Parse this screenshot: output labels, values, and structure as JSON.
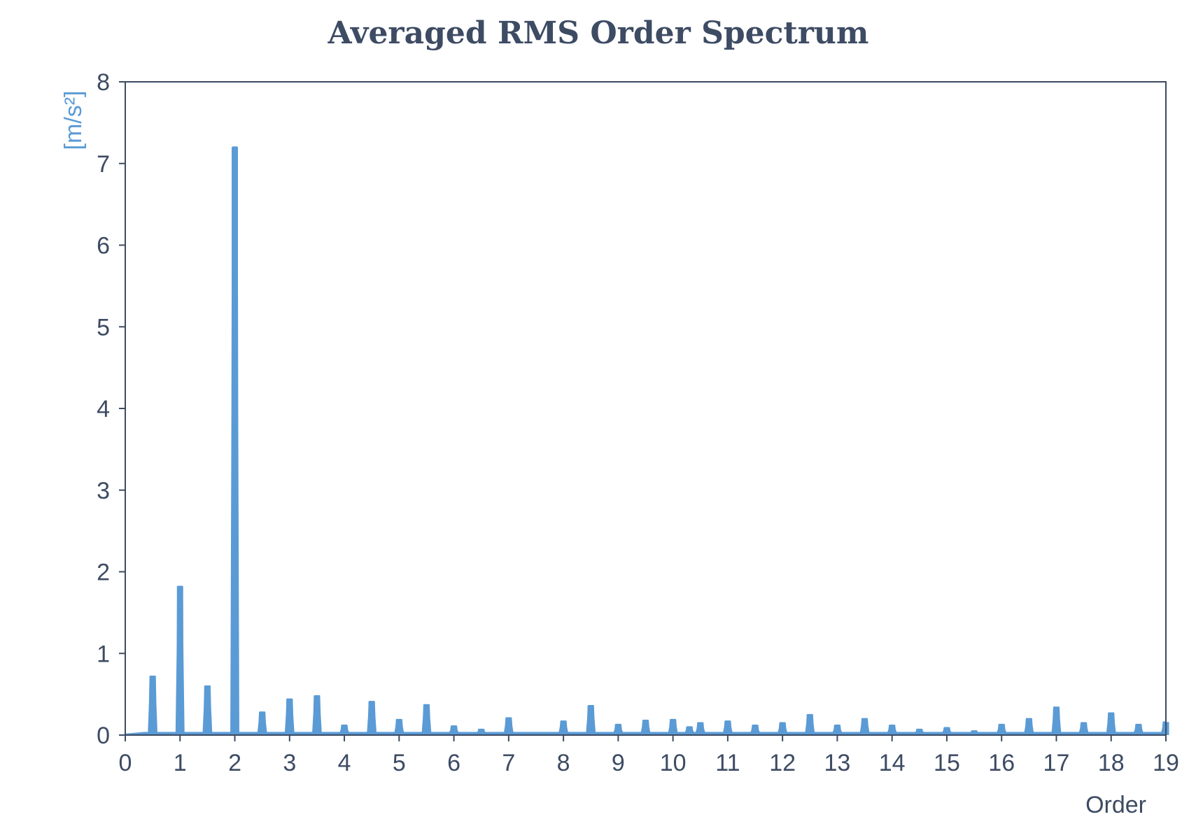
{
  "chart_data": {
    "type": "line",
    "title": "Averaged RMS Order Spectrum",
    "xlabel": "Order",
    "ylabel": "[m/s²]",
    "xlim": [
      0,
      19
    ],
    "ylim": [
      0,
      8
    ],
    "x_ticks": [
      0,
      1,
      2,
      3,
      4,
      5,
      6,
      7,
      8,
      9,
      10,
      11,
      12,
      13,
      14,
      15,
      16,
      17,
      18,
      19
    ],
    "y_ticks": [
      0,
      1,
      2,
      3,
      4,
      5,
      6,
      7,
      8
    ],
    "grid": false,
    "legend": "none",
    "peaks": [
      {
        "x": 0.5,
        "y": 0.72
      },
      {
        "x": 1.0,
        "y": 1.82
      },
      {
        "x": 1.5,
        "y": 0.6
      },
      {
        "x": 2.0,
        "y": 7.2
      },
      {
        "x": 2.5,
        "y": 0.28
      },
      {
        "x": 3.0,
        "y": 0.44
      },
      {
        "x": 3.5,
        "y": 0.48
      },
      {
        "x": 4.0,
        "y": 0.12
      },
      {
        "x": 4.5,
        "y": 0.41
      },
      {
        "x": 5.0,
        "y": 0.19
      },
      {
        "x": 5.5,
        "y": 0.37
      },
      {
        "x": 6.0,
        "y": 0.11
      },
      {
        "x": 6.5,
        "y": 0.07
      },
      {
        "x": 7.0,
        "y": 0.21
      },
      {
        "x": 8.0,
        "y": 0.17
      },
      {
        "x": 8.5,
        "y": 0.36
      },
      {
        "x": 9.0,
        "y": 0.13
      },
      {
        "x": 9.5,
        "y": 0.18
      },
      {
        "x": 10.0,
        "y": 0.19
      },
      {
        "x": 10.3,
        "y": 0.1
      },
      {
        "x": 10.5,
        "y": 0.15
      },
      {
        "x": 11.0,
        "y": 0.17
      },
      {
        "x": 11.5,
        "y": 0.12
      },
      {
        "x": 12.0,
        "y": 0.15
      },
      {
        "x": 12.5,
        "y": 0.25
      },
      {
        "x": 13.0,
        "y": 0.12
      },
      {
        "x": 13.5,
        "y": 0.2
      },
      {
        "x": 14.0,
        "y": 0.12
      },
      {
        "x": 14.5,
        "y": 0.07
      },
      {
        "x": 15.0,
        "y": 0.09
      },
      {
        "x": 15.5,
        "y": 0.05
      },
      {
        "x": 16.0,
        "y": 0.13
      },
      {
        "x": 16.5,
        "y": 0.2
      },
      {
        "x": 17.0,
        "y": 0.34
      },
      {
        "x": 17.5,
        "y": 0.15
      },
      {
        "x": 18.0,
        "y": 0.27
      },
      {
        "x": 18.5,
        "y": 0.13
      },
      {
        "x": 19.0,
        "y": 0.16
      }
    ],
    "baseline": 0.03,
    "colors": {
      "series": "#5b9bd5",
      "text": "#3d4b63",
      "axis": "#3d4b63",
      "ylabel": "#5b9bd5"
    }
  }
}
